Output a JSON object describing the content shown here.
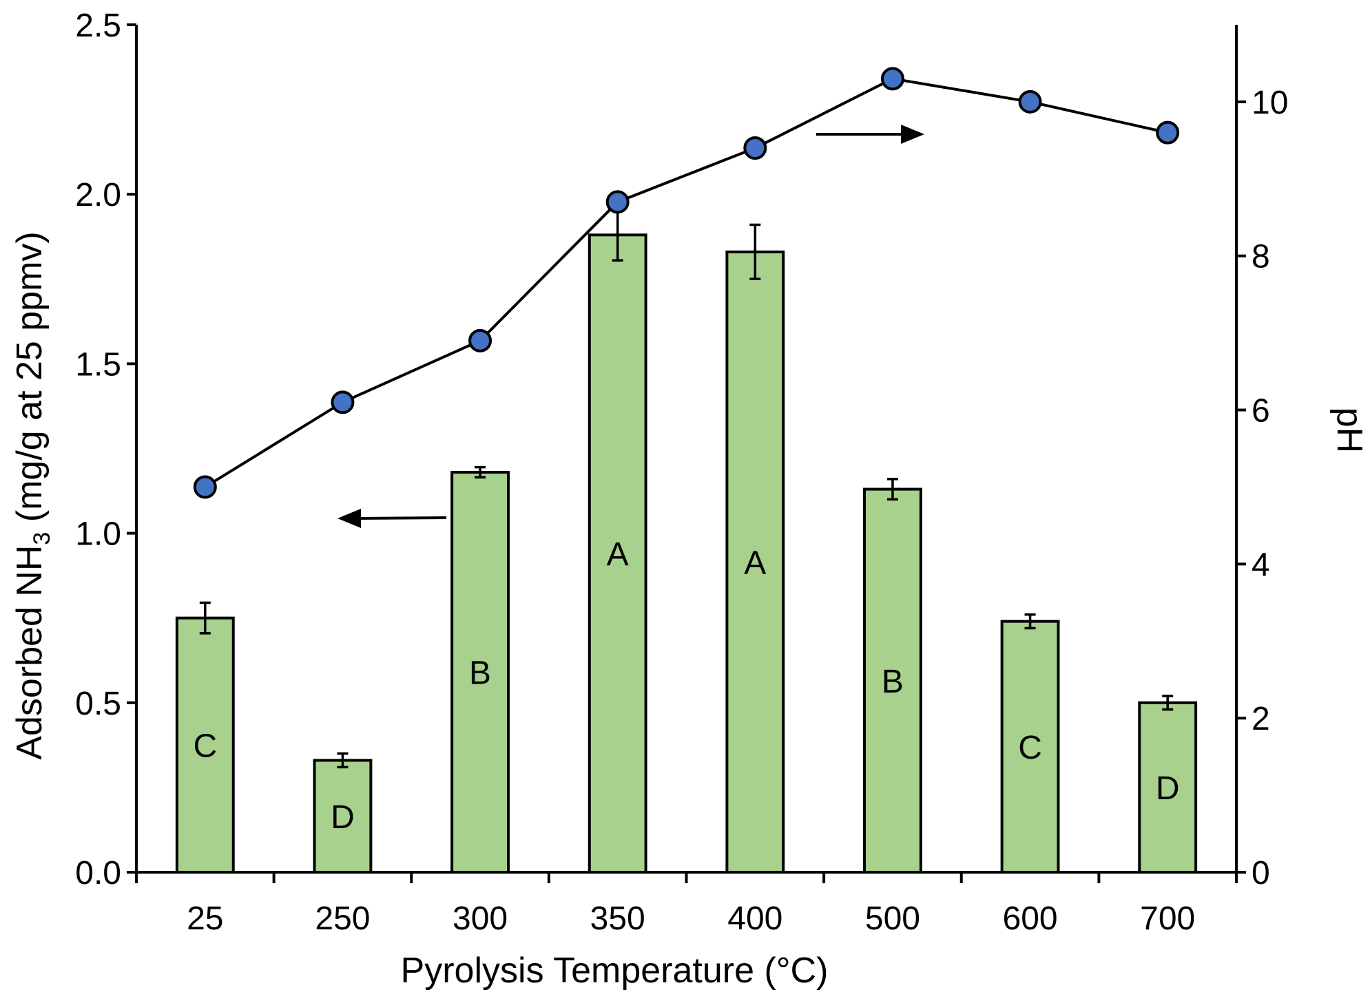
{
  "chart_data": {
    "type": "bar",
    "categories": [
      "25",
      "250",
      "300",
      "350",
      "400",
      "500",
      "600",
      "700"
    ],
    "series": [
      {
        "name": "Adsorbed NH3",
        "axis": "left",
        "type": "bar",
        "values": [
          0.75,
          0.33,
          1.18,
          1.88,
          1.83,
          1.13,
          0.74,
          0.5
        ],
        "errors": [
          0.045,
          0.02,
          0.015,
          0.075,
          0.08,
          0.03,
          0.02,
          0.02
        ],
        "group_letters": [
          "C",
          "D",
          "B",
          "A",
          "A",
          "B",
          "C",
          "D"
        ],
        "color": "#a9d18e"
      },
      {
        "name": "pH",
        "axis": "right",
        "type": "line",
        "values": [
          5.0,
          6.1,
          6.9,
          8.7,
          9.4,
          10.3,
          10.0,
          9.6
        ],
        "color": "#4472c4"
      }
    ],
    "xlabel": "Pyrolysis Temperature (°C)",
    "ylabel_prefix": "Adsorbed NH",
    "ylabel_subscript": "3",
    "ylabel_suffix": " (mg/g at 25 ppmv)",
    "y2label": "pH",
    "ylim": [
      0,
      2.5
    ],
    "y_ticks": [
      "0.0",
      "0.5",
      "1.0",
      "1.5",
      "2.0",
      "2.5"
    ],
    "y2lim": [
      0,
      11
    ],
    "y2_ticks": [
      "0",
      "2",
      "4",
      "6",
      "8",
      "10"
    ],
    "annotations": [
      {
        "type": "arrow",
        "direction": "left",
        "meaning": "bars refer to left axis"
      },
      {
        "type": "arrow",
        "direction": "right",
        "meaning": "line refers to right axis"
      }
    ]
  }
}
